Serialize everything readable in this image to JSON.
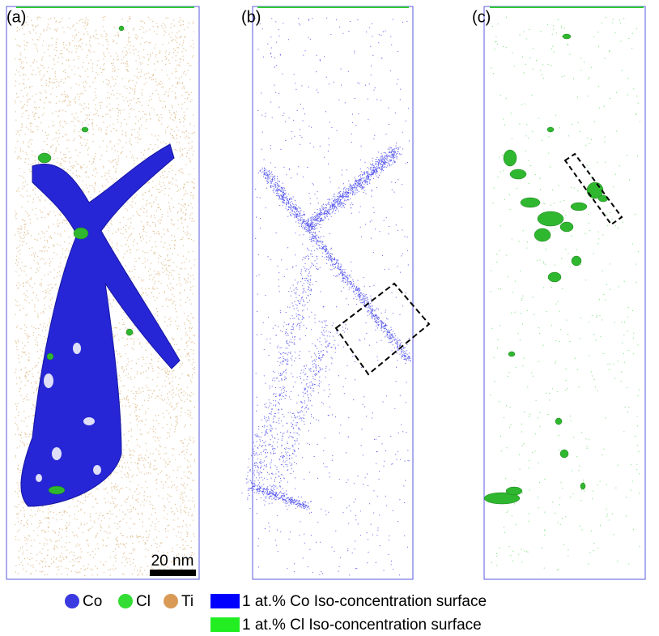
{
  "panels": [
    {
      "label": "(a)"
    },
    {
      "label": "(b)"
    },
    {
      "label": "(c)"
    }
  ],
  "scale_bar": "20 nm",
  "legend": {
    "atoms": [
      "Co",
      "Cl",
      "Ti"
    ],
    "surfaces": [
      "1 at.% Co Iso-concentration surface",
      "1 at.% Cl Iso-concentration surface"
    ]
  }
}
